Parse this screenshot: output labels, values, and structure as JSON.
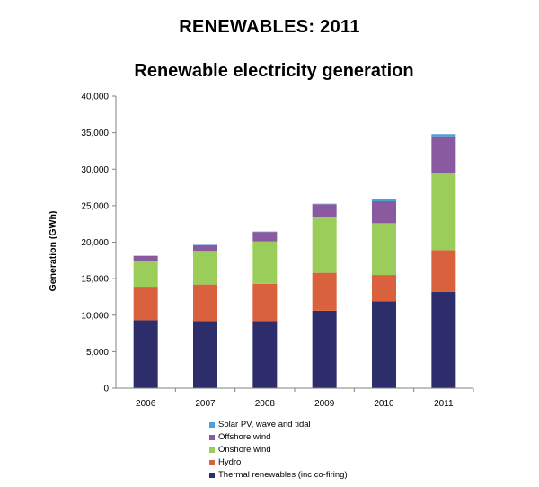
{
  "page_title": "RENEWABLES: 2011",
  "chart_data": {
    "type": "bar",
    "stacked": true,
    "title": "Renewable electricity generation",
    "xlabel": "",
    "ylabel": "Generation (GWh)",
    "ylim": [
      0,
      40000
    ],
    "yticks": [
      0,
      5000,
      10000,
      15000,
      20000,
      25000,
      30000,
      35000,
      40000
    ],
    "ytick_labels": [
      "0",
      "5,000",
      "10,000",
      "15,000",
      "20,000",
      "25,000",
      "30,000",
      "35,000",
      "40,000"
    ],
    "grid": false,
    "legend_position": "bottom",
    "categories": [
      "2006",
      "2007",
      "2008",
      "2009",
      "2010",
      "2011"
    ],
    "series": [
      {
        "name": "Thermal renewables (inc co-firing)",
        "color": "#2e2d6b",
        "values": [
          9300,
          9200,
          9200,
          10600,
          11900,
          13200
        ]
      },
      {
        "name": "Hydro",
        "color": "#d9613d",
        "values": [
          4600,
          5000,
          5100,
          5200,
          3600,
          5700
        ]
      },
      {
        "name": "Onshore wind",
        "color": "#9acd5a",
        "values": [
          3500,
          4600,
          5800,
          7700,
          7100,
          10500
        ]
      },
      {
        "name": "Offshore wind",
        "color": "#8a5aa0",
        "values": [
          700,
          800,
          1300,
          1700,
          3000,
          5100
        ]
      },
      {
        "name": "Solar PV, wave and tidal",
        "color": "#4aa3d6",
        "values": [
          50,
          50,
          60,
          70,
          300,
          300
        ]
      }
    ]
  }
}
